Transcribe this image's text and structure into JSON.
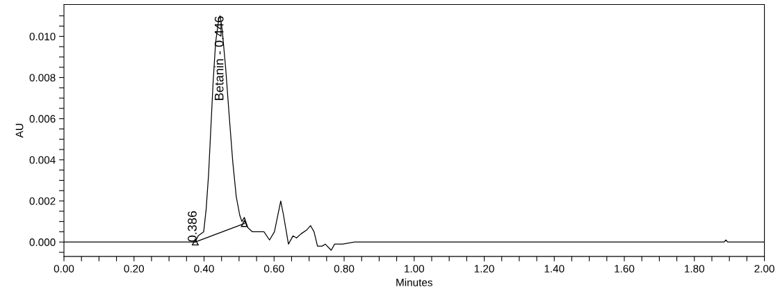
{
  "chart_data": {
    "type": "line",
    "xlabel": "Minutes",
    "ylabel": "AU",
    "xlim": [
      0,
      2.0
    ],
    "ylim": [
      -0.0007,
      0.01155
    ],
    "xticks": [
      {
        "value": 0,
        "label": "0.00"
      },
      {
        "value": 0.05,
        "label": null
      },
      {
        "value": 0.1,
        "label": null
      },
      {
        "value": 0.15,
        "label": null
      },
      {
        "value": 0.2,
        "label": "0.20"
      },
      {
        "value": 0.25,
        "label": null
      },
      {
        "value": 0.3,
        "label": null
      },
      {
        "value": 0.35,
        "label": null
      },
      {
        "value": 0.4,
        "label": "0.40"
      },
      {
        "value": 0.45,
        "label": null
      },
      {
        "value": 0.5,
        "label": null
      },
      {
        "value": 0.55,
        "label": null
      },
      {
        "value": 0.6,
        "label": "0.60"
      },
      {
        "value": 0.65,
        "label": null
      },
      {
        "value": 0.7,
        "label": null
      },
      {
        "value": 0.75,
        "label": null
      },
      {
        "value": 0.8,
        "label": "0.80"
      },
      {
        "value": 0.85,
        "label": null
      },
      {
        "value": 0.9,
        "label": null
      },
      {
        "value": 0.95,
        "label": null
      },
      {
        "value": 1.0,
        "label": "1.00"
      },
      {
        "value": 1.05,
        "label": null
      },
      {
        "value": 1.1,
        "label": null
      },
      {
        "value": 1.15,
        "label": null
      },
      {
        "value": 1.2,
        "label": "1.20"
      },
      {
        "value": 1.25,
        "label": null
      },
      {
        "value": 1.3,
        "label": null
      },
      {
        "value": 1.35,
        "label": null
      },
      {
        "value": 1.4,
        "label": "1.40"
      },
      {
        "value": 1.45,
        "label": null
      },
      {
        "value": 1.5,
        "label": null
      },
      {
        "value": 1.55,
        "label": null
      },
      {
        "value": 1.6,
        "label": "1.60"
      },
      {
        "value": 1.65,
        "label": null
      },
      {
        "value": 1.7,
        "label": null
      },
      {
        "value": 1.75,
        "label": null
      },
      {
        "value": 1.8,
        "label": "1.80"
      },
      {
        "value": 1.85,
        "label": null
      },
      {
        "value": 1.9,
        "label": null
      },
      {
        "value": 1.95,
        "label": null
      },
      {
        "value": 2.0,
        "label": "2.00"
      }
    ],
    "yticks": [
      {
        "value": -0.0005,
        "label": null
      },
      {
        "value": 0,
        "label": "0.000"
      },
      {
        "value": 0.0005,
        "label": null
      },
      {
        "value": 0.001,
        "label": null
      },
      {
        "value": 0.0015,
        "label": null
      },
      {
        "value": 0.002,
        "label": "0.002"
      },
      {
        "value": 0.0025,
        "label": null
      },
      {
        "value": 0.003,
        "label": null
      },
      {
        "value": 0.0035,
        "label": null
      },
      {
        "value": 0.004,
        "label": "0.004"
      },
      {
        "value": 0.0045,
        "label": null
      },
      {
        "value": 0.005,
        "label": null
      },
      {
        "value": 0.0055,
        "label": null
      },
      {
        "value": 0.006,
        "label": "0.006"
      },
      {
        "value": 0.0065,
        "label": null
      },
      {
        "value": 0.007,
        "label": null
      },
      {
        "value": 0.0075,
        "label": null
      },
      {
        "value": 0.008,
        "label": "0.008"
      },
      {
        "value": 0.0085,
        "label": null
      },
      {
        "value": 0.009,
        "label": null
      },
      {
        "value": 0.0095,
        "label": null
      },
      {
        "value": 0.01,
        "label": "0.010"
      },
      {
        "value": 0.0105,
        "label": null
      },
      {
        "value": 0.011,
        "label": null
      }
    ],
    "grid": false,
    "series": [
      {
        "color": "#000000",
        "marker": "none",
        "x": [
          0,
          0.03,
          0.06,
          0.09,
          0.12,
          0.15,
          0.18,
          0.21,
          0.24,
          0.27,
          0.3,
          0.33,
          0.36,
          0.375,
          0.383,
          0.399,
          0.406,
          0.413,
          0.419,
          0.426,
          0.433,
          0.4425,
          0.446,
          0.452,
          0.462,
          0.472,
          0.482,
          0.492,
          0.502,
          0.508,
          0.515,
          0.525,
          0.538,
          0.558,
          0.571,
          0.587,
          0.601,
          0.619,
          0.627,
          0.641,
          0.654,
          0.664,
          0.677,
          0.694,
          0.704,
          0.714,
          0.724,
          0.737,
          0.746,
          0.763,
          0.773,
          0.796,
          0.83,
          0.87,
          0.91,
          0.95,
          1.0,
          1.05,
          1.1,
          1.15,
          1.2,
          1.25,
          1.3,
          1.35,
          1.4,
          1.45,
          1.5,
          1.55,
          1.6,
          1.65,
          1.7,
          1.75,
          1.8,
          1.85,
          1.885,
          1.89,
          1.895,
          1.93,
          1.96,
          2.0
        ],
        "values": [
          0,
          0,
          0,
          0,
          0,
          0,
          0,
          0,
          0,
          0,
          0,
          0,
          0,
          0,
          0.0003,
          0.0005,
          0.0016,
          0.0033,
          0.0054,
          0.0078,
          0.0097,
          0.0109,
          0.011,
          0.0103,
          0.0084,
          0.0061,
          0.0039,
          0.0022,
          0.0013,
          0.001,
          0.0012,
          0.0007,
          0.0005,
          0.0005,
          0.0005,
          0.0001,
          0.0005,
          0.002,
          0.0013,
          -0.0001,
          0.0003,
          0.0002,
          0.0004,
          0.0006,
          0.0008,
          0.0005,
          -0.0002,
          -0.0002,
          -0.0001,
          -0.0004,
          -0.0001,
          -0.0001,
          0,
          0,
          0,
          0,
          0,
          0,
          0,
          0,
          0,
          0,
          0,
          0,
          0,
          0,
          0,
          0,
          0,
          0,
          0,
          0,
          0,
          0,
          0,
          0.0001,
          0,
          0,
          0,
          0
        ]
      },
      {
        "color": "#000000",
        "marker": "triangle",
        "x": [
          0.375,
          0.515
        ],
        "values": [
          0.0,
          0.0009
        ]
      }
    ],
    "annotations": [
      {
        "text": "Betanin - 0.446",
        "x": 0.446,
        "y": 0.011
      },
      {
        "text": "0.386",
        "x": 0.386,
        "y": 0.0
      }
    ]
  }
}
